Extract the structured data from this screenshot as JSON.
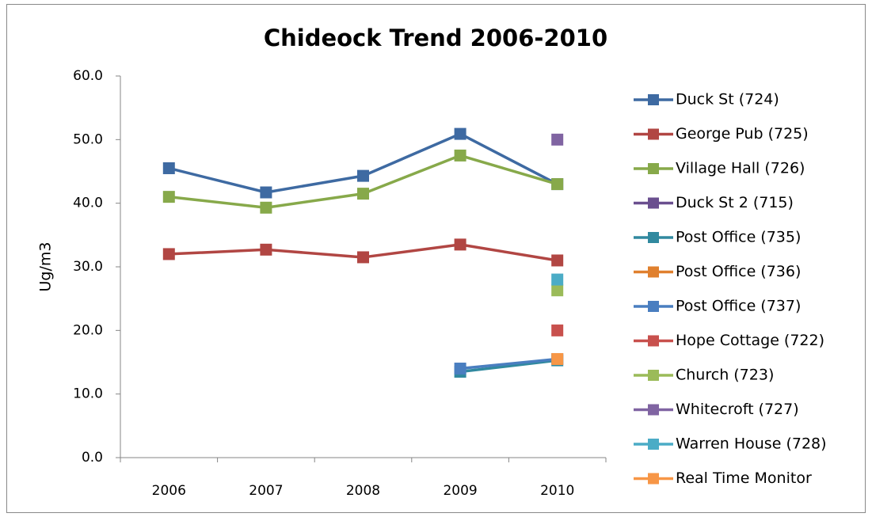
{
  "chart_data": {
    "type": "line",
    "title": "Chideock Trend 2006-2010",
    "y_label": "Ug/m3",
    "categories": [
      "2006",
      "2007",
      "2008",
      "2009",
      "2010"
    ],
    "ylim": [
      0,
      60
    ],
    "yticks": [
      {
        "value": 0,
        "label": "0.0"
      },
      {
        "value": 10,
        "label": "10.0"
      },
      {
        "value": 20,
        "label": "20.0"
      },
      {
        "value": 30,
        "label": "30.0"
      },
      {
        "value": 40,
        "label": "40.0"
      },
      {
        "value": 50,
        "label": "50.0"
      },
      {
        "value": 60,
        "label": "60.0"
      }
    ],
    "grid": false,
    "legend": "right",
    "series": [
      {
        "name": "Duck St (724)",
        "color": "#3e6aa2",
        "values": [
          45.5,
          41.7,
          44.3,
          50.9,
          43.0
        ]
      },
      {
        "name": "George Pub (725)",
        "color": "#b14643",
        "values": [
          32.0,
          32.7,
          31.5,
          33.5,
          31.0
        ]
      },
      {
        "name": "Village Hall (726)",
        "color": "#87a94a",
        "values": [
          41.0,
          39.3,
          41.5,
          47.5,
          43.0
        ]
      },
      {
        "name": "Duck St 2 (715)",
        "color": "#6a4f8f",
        "values": [
          null,
          null,
          null,
          null,
          null
        ]
      },
      {
        "name": "Post Office (735)",
        "color": "#31899f",
        "values": [
          null,
          null,
          null,
          13.5,
          15.3
        ]
      },
      {
        "name": "Post Office (736)",
        "color": "#e0802e",
        "values": [
          null,
          null,
          null,
          null,
          null
        ]
      },
      {
        "name": "Post Office (737)",
        "color": "#4a7ec0",
        "values": [
          null,
          null,
          null,
          14.0,
          15.5
        ]
      },
      {
        "name": "Hope Cottage (722)",
        "color": "#c8504d",
        "values": [
          null,
          null,
          null,
          null,
          20.0
        ]
      },
      {
        "name": "Church (723)",
        "color": "#9bbb59",
        "values": [
          null,
          null,
          null,
          null,
          26.3
        ]
      },
      {
        "name": "Whitecroft (727)",
        "color": "#8064a2",
        "values": [
          null,
          null,
          null,
          null,
          50.0
        ]
      },
      {
        "name": "Warren House (728)",
        "color": "#4bacc6",
        "values": [
          null,
          null,
          null,
          null,
          28.0
        ]
      },
      {
        "name": "Real Time Monitor",
        "color": "#f79646",
        "values": [
          null,
          null,
          null,
          null,
          15.5
        ]
      }
    ]
  }
}
